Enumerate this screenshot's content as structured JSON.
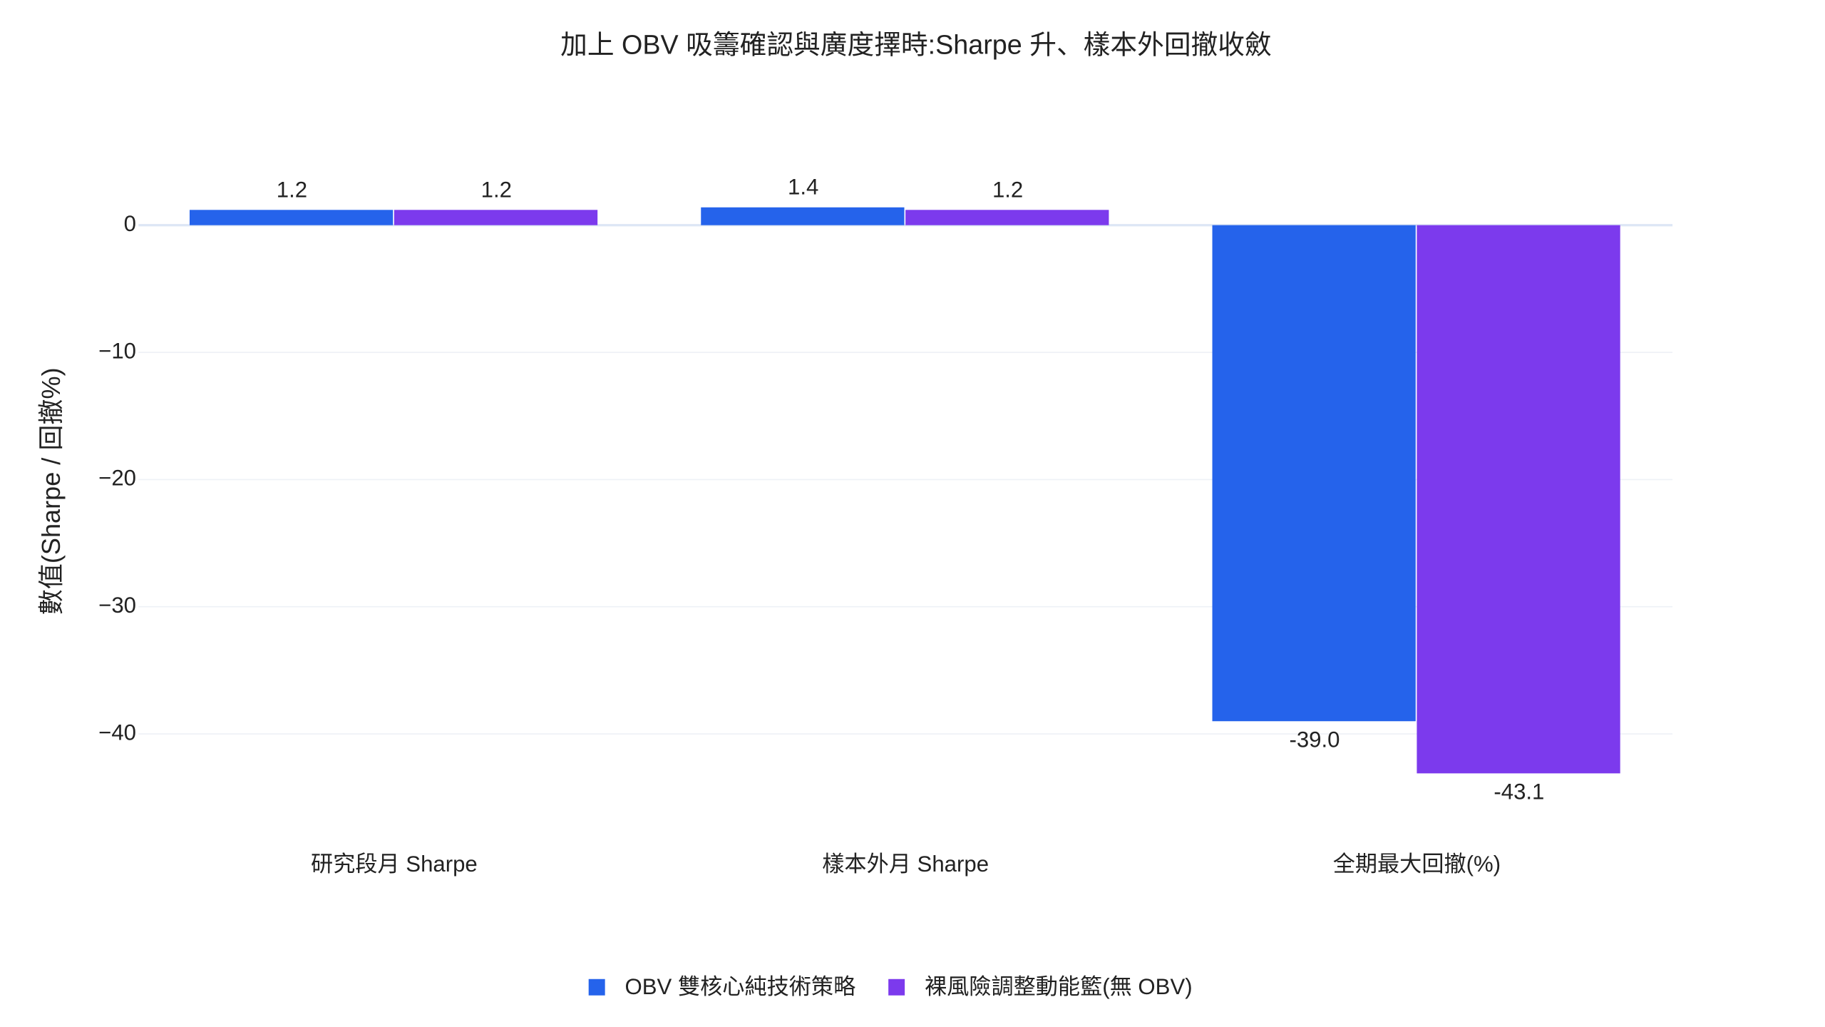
{
  "chart_data": {
    "type": "bar",
    "title": "加上 OBV 吸籌確認與廣度擇時:Sharpe 升、樣本外回撤收斂",
    "y_label": "數值(Sharpe / 回撤%)",
    "categories": [
      "研究段月 Sharpe",
      "樣本外月 Sharpe",
      "全期最大回撤(%)"
    ],
    "series": [
      {
        "name": "OBV 雙核心純技術策略",
        "color": "#2563eb",
        "values": [
          1.2,
          1.4,
          -39.0
        ],
        "value_labels": [
          "1.2",
          "1.4",
          "-39.0"
        ]
      },
      {
        "name": "裸風險調整動能籃(無 OBV)",
        "color": "#7c3aed",
        "values": [
          1.2,
          1.2,
          -43.1
        ],
        "value_labels": [
          "1.2",
          "1.2",
          "-43.1"
        ]
      }
    ],
    "ylim": [
      -45.2,
      4
    ],
    "yticks": [
      0,
      {
        "value": -10,
        "label": "−10"
      },
      {
        "value": -20,
        "label": "−20"
      },
      {
        "value": -30,
        "label": "−30"
      },
      {
        "value": -40,
        "label": "−40"
      }
    ],
    "grid": true,
    "legend": "bottom"
  }
}
